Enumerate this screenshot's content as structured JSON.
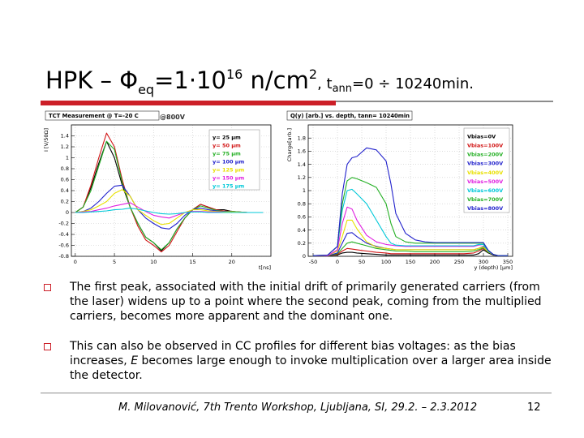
{
  "slide": {
    "title_main": "HPK – Φ",
    "title_sub_eq": "eq",
    "title_mid": "=1·10",
    "title_sup_16": "16",
    "title_unit": " n/cm",
    "title_sup_2": "2",
    "title_sep": ", t",
    "title_sub_ann": "ann",
    "title_rest": "=0 ÷ 10240min.",
    "bullet1": "The first peak, associated with the initial drift of primarily generated carriers (from the laser) widens up to a point where the second peak, coming from the multiplied carriers, becomes more apparent and the dominant one.",
    "bullet2_a": "This can also be observed in CC profiles for different bias voltages: as the bias increases, ",
    "bullet2_e": "E",
    "bullet2_b": " becomes large enough to invoke multiplication over a larger area inside the detector.",
    "footer": "M. Milovanović, 7th Trento Workshop, Ljubljana, SI, 29.2. – 2.3.2012",
    "page_number": "12"
  },
  "chart_data": [
    {
      "type": "line",
      "title": "TCT Measurement @ T=-20 C",
      "annotation": "@800V",
      "xlabel": "t[ns]",
      "ylabel": "I [V/50Ω]",
      "xlim": [
        -0.5,
        25
      ],
      "ylim": [
        -0.8,
        1.6
      ],
      "xticks": [
        0,
        5,
        10,
        15,
        20
      ],
      "yticks": [
        -0.8,
        -0.6,
        -0.4,
        -0.2,
        0,
        0.2,
        0.4,
        0.6,
        0.8,
        1,
        1.2,
        1.4
      ],
      "grid": true,
      "legend_position": "top-right",
      "x": [
        0,
        1,
        2,
        3,
        4,
        5,
        6,
        7,
        8,
        9,
        10,
        11,
        12,
        13,
        14,
        15,
        16,
        17,
        18,
        19,
        20,
        22,
        24
      ],
      "series": [
        {
          "name": "y= 25  μm",
          "color": "#000000",
          "values": [
            0,
            0.1,
            0.45,
            0.9,
            1.3,
            1.0,
            0.5,
            0.1,
            -0.2,
            -0.45,
            -0.55,
            -0.7,
            -0.55,
            -0.3,
            -0.1,
            0.05,
            0.15,
            0.1,
            0.05,
            0.05,
            0.02,
            0,
            0
          ]
        },
        {
          "name": "y= 50  μm",
          "color": "#d11515",
          "values": [
            0,
            0.1,
            0.5,
            1.0,
            1.45,
            1.2,
            0.6,
            0.1,
            -0.25,
            -0.5,
            -0.6,
            -0.72,
            -0.6,
            -0.35,
            -0.1,
            0.05,
            0.15,
            0.1,
            0.05,
            0.03,
            0.02,
            0,
            0
          ]
        },
        {
          "name": "y= 75  μm",
          "color": "#25b025",
          "values": [
            0,
            0.1,
            0.4,
            0.85,
            1.3,
            1.15,
            0.55,
            0.1,
            -0.2,
            -0.45,
            -0.55,
            -0.68,
            -0.55,
            -0.3,
            -0.1,
            0.05,
            0.12,
            0.08,
            0.04,
            0.02,
            0.02,
            0,
            0
          ]
        },
        {
          "name": "y= 100  μm",
          "color": "#2222cc",
          "values": [
            0,
            0.02,
            0.08,
            0.2,
            0.35,
            0.48,
            0.5,
            0.3,
            0.05,
            -0.1,
            -0.2,
            -0.28,
            -0.3,
            -0.2,
            -0.05,
            0.05,
            0.08,
            0.05,
            0.03,
            0.02,
            0.01,
            0,
            0
          ]
        },
        {
          "name": "y= 125  μm",
          "color": "#e8e000",
          "values": [
            0,
            0.02,
            0.05,
            0.12,
            0.2,
            0.35,
            0.42,
            0.3,
            0.05,
            -0.05,
            -0.15,
            -0.22,
            -0.2,
            -0.1,
            0,
            0.05,
            0.05,
            0.03,
            0.02,
            0.01,
            0.01,
            0,
            0
          ]
        },
        {
          "name": "y= 150  μm",
          "color": "#e020e0",
          "values": [
            0,
            0.01,
            0.02,
            0.05,
            0.08,
            0.12,
            0.15,
            0.18,
            0.1,
            0.02,
            -0.05,
            -0.08,
            -0.1,
            -0.05,
            0,
            0.02,
            0.02,
            0.01,
            0.01,
            0,
            0,
            0,
            0
          ]
        },
        {
          "name": "y= 175  μm",
          "color": "#00c8d8",
          "values": [
            0,
            0,
            0.01,
            0.02,
            0.03,
            0.05,
            0.06,
            0.08,
            0.06,
            0.03,
            0,
            -0.02,
            -0.03,
            -0.02,
            0,
            0.01,
            0.01,
            0,
            0,
            0,
            0,
            0,
            0
          ]
        }
      ]
    },
    {
      "type": "line",
      "title": "Q(y) [arb.] vs. depth, tann= 10240min",
      "xlabel": "y (depth) [μm]",
      "ylabel": "Charge[arb.]",
      "xlim": [
        -60,
        360
      ],
      "ylim": [
        0,
        2.0
      ],
      "xticks": [
        -50,
        0,
        50,
        100,
        150,
        200,
        250,
        300,
        350
      ],
      "yticks": [
        0,
        0.2,
        0.4,
        0.6,
        0.8,
        1,
        1.2,
        1.4,
        1.6,
        1.8
      ],
      "grid": true,
      "legend_position": "top-right",
      "x": [
        -50,
        -20,
        0,
        10,
        20,
        30,
        40,
        60,
        80,
        100,
        110,
        120,
        140,
        160,
        180,
        200,
        220,
        240,
        260,
        280,
        290,
        300,
        310,
        320,
        330,
        340,
        350
      ],
      "series": [
        {
          "name": "Vbias=0V",
          "color": "#000000",
          "values": [
            0.01,
            0.01,
            0.02,
            0.05,
            0.06,
            0.06,
            0.05,
            0.04,
            0.03,
            0.02,
            0.02,
            0.02,
            0.02,
            0.02,
            0.02,
            0.02,
            0.02,
            0.02,
            0.02,
            0.02,
            0.04,
            0.1,
            0.05,
            0.02,
            0.01,
            0.01,
            0.01
          ]
        },
        {
          "name": "Vbias=100V",
          "color": "#d11515",
          "values": [
            0.01,
            0.01,
            0.03,
            0.08,
            0.12,
            0.11,
            0.1,
            0.08,
            0.06,
            0.05,
            0.04,
            0.04,
            0.04,
            0.04,
            0.04,
            0.04,
            0.04,
            0.04,
            0.04,
            0.05,
            0.08,
            0.12,
            0.06,
            0.03,
            0.01,
            0.01,
            0.01
          ]
        },
        {
          "name": "Vbias=200V",
          "color": "#25b025",
          "values": [
            0.01,
            0.01,
            0.04,
            0.12,
            0.2,
            0.22,
            0.2,
            0.16,
            0.12,
            0.1,
            0.09,
            0.08,
            0.08,
            0.07,
            0.07,
            0.07,
            0.07,
            0.07,
            0.07,
            0.08,
            0.1,
            0.13,
            0.06,
            0.03,
            0.01,
            0.01,
            0.01
          ]
        },
        {
          "name": "Vbias=300V",
          "color": "#2222cc",
          "values": [
            0.01,
            0.01,
            0.05,
            0.2,
            0.35,
            0.36,
            0.3,
            0.2,
            0.15,
            0.12,
            0.11,
            0.1,
            0.1,
            0.1,
            0.1,
            0.1,
            0.1,
            0.1,
            0.1,
            0.1,
            0.12,
            0.15,
            0.07,
            0.03,
            0.01,
            0.01,
            0.01
          ]
        },
        {
          "name": "Vbias=400V",
          "color": "#e8e000",
          "values": [
            0.01,
            0.01,
            0.08,
            0.3,
            0.55,
            0.55,
            0.42,
            0.22,
            0.14,
            0.12,
            0.11,
            0.1,
            0.1,
            0.1,
            0.1,
            0.1,
            0.1,
            0.1,
            0.1,
            0.1,
            0.12,
            0.14,
            0.07,
            0.03,
            0.01,
            0.01,
            0.01
          ]
        },
        {
          "name": "Vbias=500V",
          "color": "#e020e0",
          "values": [
            0.01,
            0.01,
            0.1,
            0.5,
            0.75,
            0.72,
            0.55,
            0.32,
            0.22,
            0.18,
            0.17,
            0.16,
            0.15,
            0.15,
            0.15,
            0.15,
            0.15,
            0.15,
            0.15,
            0.15,
            0.17,
            0.18,
            0.08,
            0.03,
            0.01,
            0.01,
            0.01
          ]
        },
        {
          "name": "Vbias=600V",
          "color": "#00c8d8",
          "values": [
            0.01,
            0.02,
            0.15,
            0.7,
            1.0,
            1.02,
            0.95,
            0.8,
            0.55,
            0.3,
            0.2,
            0.17,
            0.16,
            0.16,
            0.16,
            0.16,
            0.16,
            0.16,
            0.16,
            0.16,
            0.18,
            0.18,
            0.08,
            0.03,
            0.01,
            0.01,
            0.01
          ]
        },
        {
          "name": "Vbias=700V",
          "color": "#25b025",
          "values": [
            0.01,
            0.02,
            0.15,
            0.8,
            1.15,
            1.2,
            1.18,
            1.12,
            1.05,
            0.8,
            0.5,
            0.3,
            0.22,
            0.2,
            0.2,
            0.2,
            0.2,
            0.2,
            0.2,
            0.2,
            0.2,
            0.2,
            0.09,
            0.03,
            0.01,
            0.01,
            0.01
          ]
        },
        {
          "name": "Vbias=800V",
          "color": "#2222cc",
          "values": [
            0.01,
            0.02,
            0.15,
            0.95,
            1.4,
            1.5,
            1.52,
            1.65,
            1.62,
            1.45,
            1.1,
            0.65,
            0.35,
            0.25,
            0.22,
            0.21,
            0.21,
            0.21,
            0.21,
            0.21,
            0.21,
            0.21,
            0.09,
            0.03,
            0.01,
            0.01,
            0.01
          ]
        }
      ]
    }
  ]
}
